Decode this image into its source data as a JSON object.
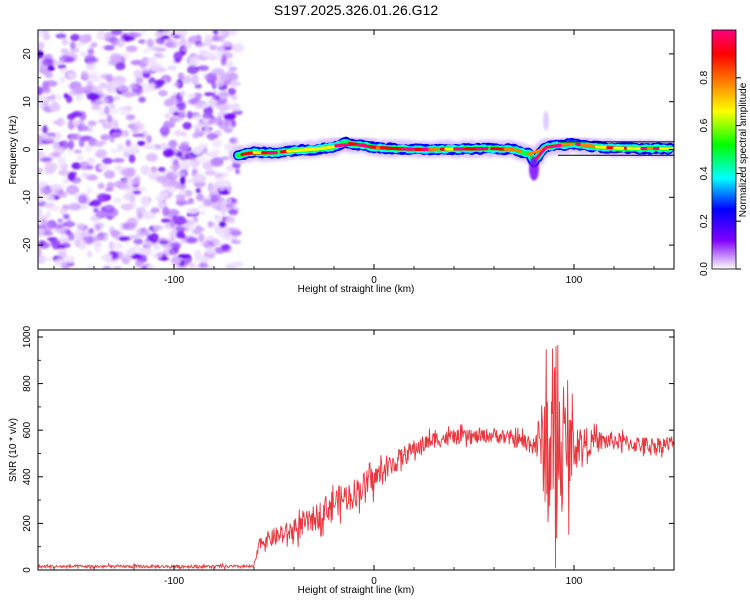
{
  "title": "S197.2025.326.01.26.G12",
  "chart_data": [
    {
      "type": "heatmap",
      "name": "spectrogram",
      "xlabel": "Height of straight line (km)",
      "ylabel": "Frequency (Hz)",
      "xlim": [
        -168,
        150
      ],
      "ylim": [
        -25,
        25
      ],
      "xticks": [
        -100,
        0,
        100
      ],
      "xtick_labels": [
        "-100",
        "0",
        "100"
      ],
      "yticks": [
        -20,
        -10,
        0,
        10,
        20
      ],
      "ytick_labels": [
        "-20",
        "-10",
        "0",
        "10",
        "20"
      ],
      "noise_region_x": [
        -168,
        -68
      ],
      "trace": {
        "x": [
          -68,
          -60,
          -50,
          -40,
          -30,
          -20,
          -15,
          -10,
          -5,
          0,
          10,
          20,
          40,
          60,
          70,
          78,
          80,
          82,
          85,
          90,
          100,
          110,
          120,
          135,
          148
        ],
        "freq": [
          -1.2,
          -0.6,
          -0.7,
          -0.2,
          0.0,
          0.6,
          1.5,
          1.1,
          0.9,
          0.4,
          0.2,
          0.0,
          0.1,
          0.2,
          0.0,
          -1.0,
          -2.5,
          -1.5,
          0.4,
          0.8,
          1.2,
          0.6,
          0.3,
          0.2,
          0.2
        ]
      },
      "colorbar": {
        "label": "Normalized spectral amplitude",
        "range": [
          0,
          1
        ],
        "ticks": [
          0.0,
          0.2,
          0.4,
          0.6,
          0.8
        ],
        "tick_labels": [
          "0.0",
          "0.2",
          "0.4",
          "0.6",
          "0.8"
        ],
        "colors": [
          "#ffffff",
          "#8000ff",
          "#0000ff",
          "#00ffff",
          "#00ff00",
          "#ffff00",
          "#ff8000",
          "#ff0000",
          "#ff0080"
        ]
      }
    },
    {
      "type": "line",
      "name": "snr",
      "xlabel": "Height of straight line (km)",
      "ylabel": "SNR (10 * v/v)",
      "xlim": [
        -168,
        150
      ],
      "ylim": [
        0,
        1030
      ],
      "xticks": [
        -100,
        0,
        100
      ],
      "xtick_labels": [
        "-100",
        "0",
        "100"
      ],
      "yticks": [
        0,
        200,
        400,
        600,
        800,
        1000
      ],
      "ytick_labels": [
        "0",
        "200",
        "400",
        "600",
        "800",
        "1000"
      ],
      "color": "#e8383d",
      "envelope": {
        "x": [
          -168,
          -60,
          -57,
          -50,
          -40,
          -30,
          -20,
          -10,
          0,
          10,
          20,
          30,
          40,
          50,
          60,
          70,
          80,
          84,
          86,
          88,
          90,
          92,
          94,
          96,
          98,
          100,
          110,
          120,
          130,
          140,
          150
        ],
        "mean": [
          15,
          15,
          120,
          140,
          170,
          220,
          290,
          330,
          390,
          460,
          520,
          560,
          570,
          570,
          580,
          560,
          540,
          560,
          520,
          500,
          510,
          520,
          520,
          520,
          520,
          540,
          550,
          555,
          540,
          535,
          545
        ],
        "noise": [
          8,
          8,
          35,
          50,
          60,
          70,
          80,
          80,
          75,
          60,
          50,
          45,
          40,
          40,
          40,
          40,
          60,
          200,
          420,
          450,
          450,
          420,
          300,
          300,
          250,
          120,
          60,
          50,
          45,
          45,
          45
        ]
      }
    }
  ]
}
